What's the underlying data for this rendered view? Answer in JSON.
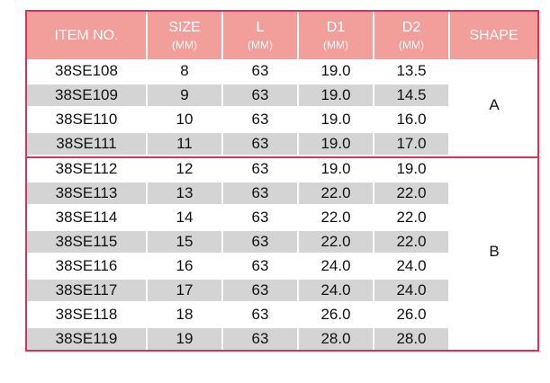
{
  "headers": [
    {
      "label": "ITEM NO.",
      "unit": ""
    },
    {
      "label": "SIZE",
      "unit": "(MM)"
    },
    {
      "label": "L",
      "unit": "(MM)"
    },
    {
      "label": "D1",
      "unit": "(MM)"
    },
    {
      "label": "D2",
      "unit": "(MM)"
    },
    {
      "label": "SHAPE",
      "unit": ""
    }
  ],
  "rows": [
    {
      "item": "38SE108",
      "size": "8",
      "l": "63",
      "d1": "19.0",
      "d2": "13.5"
    },
    {
      "item": "38SE109",
      "size": "9",
      "l": "63",
      "d1": "19.0",
      "d2": "14.5"
    },
    {
      "item": "38SE110",
      "size": "10",
      "l": "63",
      "d1": "19.0",
      "d2": "16.0"
    },
    {
      "item": "38SE111",
      "size": "11",
      "l": "63",
      "d1": "19.0",
      "d2": "17.0"
    },
    {
      "item": "38SE112",
      "size": "12",
      "l": "63",
      "d1": "19.0",
      "d2": "19.0"
    },
    {
      "item": "38SE113",
      "size": "13",
      "l": "63",
      "d1": "22.0",
      "d2": "22.0"
    },
    {
      "item": "38SE114",
      "size": "14",
      "l": "63",
      "d1": "22.0",
      "d2": "22.0"
    },
    {
      "item": "38SE115",
      "size": "15",
      "l": "63",
      "d1": "22.0",
      "d2": "22.0"
    },
    {
      "item": "38SE116",
      "size": "16",
      "l": "63",
      "d1": "24.0",
      "d2": "24.0"
    },
    {
      "item": "38SE117",
      "size": "17",
      "l": "63",
      "d1": "24.0",
      "d2": "24.0"
    },
    {
      "item": "38SE118",
      "size": "18",
      "l": "63",
      "d1": "26.0",
      "d2": "26.0"
    },
    {
      "item": "38SE119",
      "size": "19",
      "l": "63",
      "d1": "28.0",
      "d2": "28.0"
    }
  ],
  "shapes": [
    "A",
    "B"
  ],
  "colors": {
    "header_bg": "#f29e9a",
    "border": "#d6345a",
    "row_shade": "#d4d4d4"
  }
}
